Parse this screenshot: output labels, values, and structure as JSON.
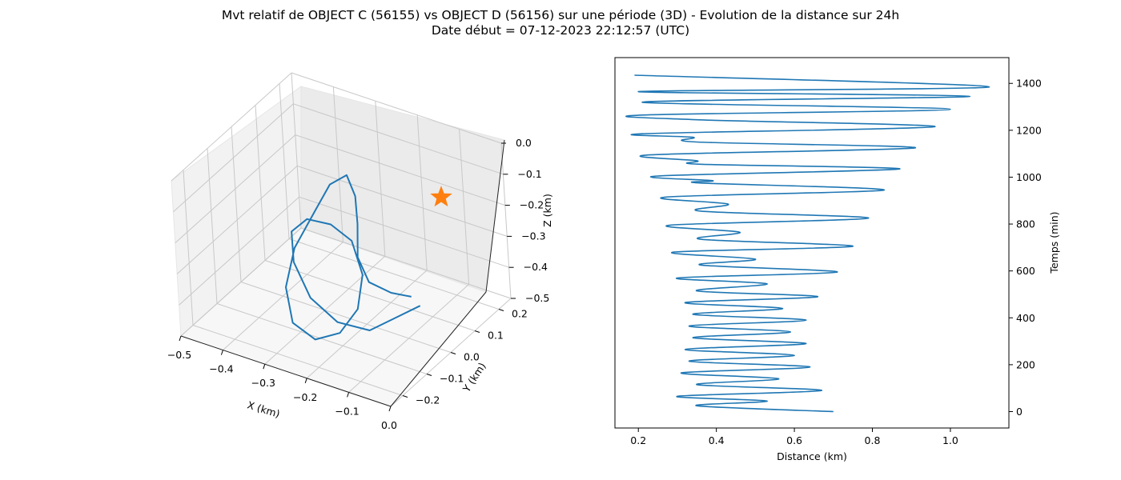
{
  "figure": {
    "title_line1": "Mvt relatif de OBJECT C (56155) vs OBJECT D (56156) sur une période (3D) - Evolution de la distance sur 24h",
    "title_line2": "Date début = 07-12-2023 22:12:57 (UTC)"
  },
  "chart_data": [
    {
      "type": "line",
      "projection": "3d",
      "xlabel": "X (km)",
      "ylabel": "Y (km)",
      "zlabel": "Z (km)",
      "xlim": [
        -0.5,
        0.0
      ],
      "ylim": [
        -0.25,
        0.25
      ],
      "zlim": [
        -0.5,
        0.0
      ],
      "x_ticks": [
        "−0.5",
        "−0.4",
        "−0.3",
        "−0.2",
        "−0.1",
        "0.0"
      ],
      "y_ticks": [
        "−0.2",
        "−0.1",
        "0.0",
        "0.1",
        "0.2"
      ],
      "z_ticks": [
        "0.0",
        "−0.1",
        "−0.2",
        "−0.3",
        "−0.4",
        "−0.5"
      ],
      "grid": true,
      "series": [
        {
          "color": "#1f77b4",
          "marker": "none",
          "points_xyz": [
            [
              -0.08,
              0.02,
              -0.4
            ],
            [
              -0.1,
              -0.05,
              -0.4
            ],
            [
              -0.12,
              -0.12,
              -0.4
            ],
            [
              -0.16,
              -0.18,
              -0.35
            ],
            [
              -0.21,
              -0.2,
              -0.28
            ],
            [
              -0.27,
              -0.16,
              -0.22
            ],
            [
              -0.32,
              -0.08,
              -0.2
            ],
            [
              -0.33,
              0.0,
              -0.22
            ],
            [
              -0.31,
              0.06,
              -0.27
            ],
            [
              -0.28,
              0.09,
              -0.33
            ],
            [
              -0.24,
              0.06,
              -0.4
            ],
            [
              -0.22,
              0.0,
              -0.46
            ],
            [
              -0.23,
              -0.06,
              -0.5
            ],
            [
              -0.26,
              -0.11,
              -0.5
            ],
            [
              -0.3,
              -0.13,
              -0.45
            ],
            [
              -0.33,
              -0.1,
              -0.37
            ],
            [
              -0.34,
              -0.04,
              -0.29
            ],
            [
              -0.32,
              0.02,
              -0.2
            ],
            [
              -0.3,
              0.05,
              -0.13
            ],
            [
              -0.27,
              0.07,
              -0.1
            ],
            [
              -0.24,
              0.05,
              -0.14
            ],
            [
              -0.22,
              0.02,
              -0.2
            ],
            [
              -0.2,
              -0.02,
              -0.27
            ],
            [
              -0.17,
              -0.03,
              -0.33
            ],
            [
              -0.13,
              -0.01,
              -0.36
            ],
            [
              -0.1,
              0.02,
              -0.38
            ]
          ]
        },
        {
          "color": "#ff7f0e",
          "marker": "star",
          "points_xyz": [
            [
              0.0,
              0.0,
              0.0
            ]
          ]
        }
      ]
    },
    {
      "type": "line",
      "xlabel": "Distance (km)",
      "ylabel": "Temps (min)",
      "xlim": [
        0.14,
        1.15
      ],
      "ylim": [
        -70,
        1510
      ],
      "x_ticks": [
        "0.2",
        "0.4",
        "0.6",
        "0.8",
        "1.0"
      ],
      "y_ticks": [
        "0",
        "200",
        "400",
        "600",
        "800",
        "1000",
        "1200",
        "1400"
      ],
      "yaxis_side": "right",
      "grid": false,
      "series": [
        {
          "color": "#1f77b4",
          "x": [
            0.7,
            0.35,
            0.53,
            0.3,
            0.67,
            0.35,
            0.56,
            0.31,
            0.64,
            0.33,
            0.6,
            0.32,
            0.63,
            0.34,
            0.59,
            0.33,
            0.63,
            0.34,
            0.57,
            0.32,
            0.66,
            0.35,
            0.53,
            0.3,
            0.71,
            0.36,
            0.5,
            0.29,
            0.75,
            0.36,
            0.46,
            0.28,
            0.79,
            0.36,
            0.43,
            0.27,
            0.83,
            0.36,
            0.39,
            0.25,
            0.87,
            0.36,
            0.35,
            0.23,
            0.91,
            0.35,
            0.34,
            0.21,
            0.96,
            0.35,
            0.21,
            1.0,
            0.21,
            1.05,
            0.2,
            1.1,
            0.19
          ],
          "y": [
            0,
            25,
            45,
            65,
            90,
            115,
            140,
            165,
            190,
            215,
            240,
            265,
            290,
            315,
            340,
            365,
            390,
            415,
            440,
            465,
            490,
            515,
            545,
            570,
            595,
            625,
            650,
            680,
            705,
            735,
            765,
            795,
            825,
            855,
            885,
            915,
            945,
            975,
            985,
            1005,
            1035,
            1055,
            1070,
            1095,
            1125,
            1150,
            1170,
            1185,
            1215,
            1245,
            1265,
            1290,
            1320,
            1345,
            1365,
            1385,
            1435
          ]
        }
      ]
    }
  ]
}
